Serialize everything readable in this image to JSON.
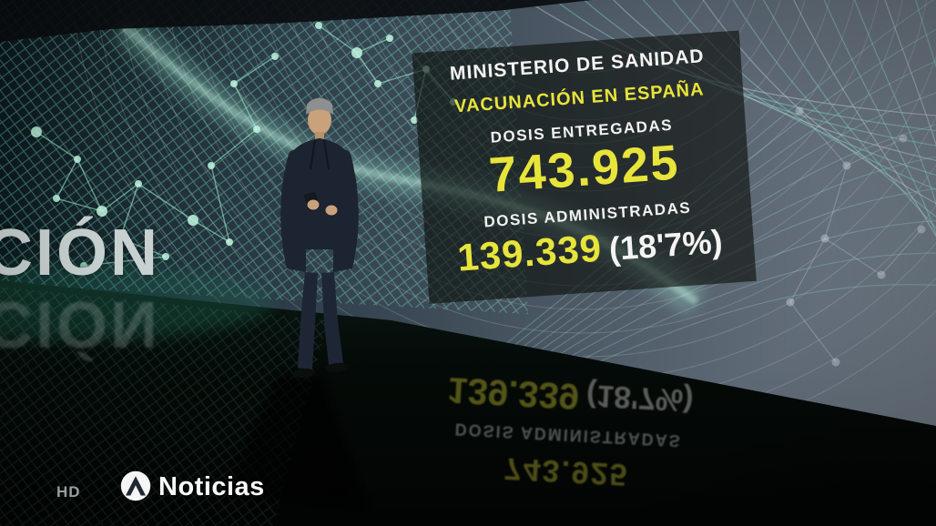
{
  "overlay": {
    "ministry": "MINISTERIO DE SANIDAD",
    "subtitle": "VACUNACIÓN EN ESPAÑA",
    "delivered_label": "DOSIS ENTREGADAS",
    "delivered_value": "743.925",
    "administered_label": "DOSIS ADMINISTRADAS",
    "administered_value": "139.339",
    "administered_pct": "(18'7%)"
  },
  "studio": {
    "wall_text_partial": "CIÓN"
  },
  "branding": {
    "hd_badge": "HD",
    "channel_wordmark": "Noticias",
    "logo_icon": "antena3-a-icon"
  },
  "colors": {
    "highlight_yellow": "#e7e43a",
    "network_mint": "#7fe9cd",
    "wall_slate": "#46525f",
    "suit_navy": "#1c2331",
    "floor_black": "#030605"
  }
}
